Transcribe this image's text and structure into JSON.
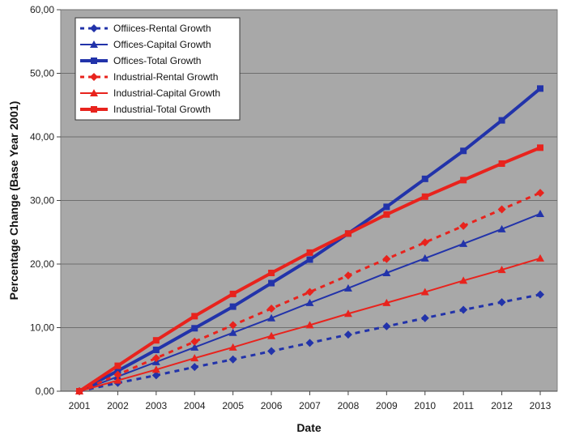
{
  "chart_data": {
    "type": "line",
    "title": "",
    "xlabel": "Date",
    "ylabel": "Percentage Change (Base Year 2001)",
    "x": [
      "2001",
      "2002",
      "2003",
      "2004",
      "2005",
      "2006",
      "2007",
      "2008",
      "2009",
      "2010",
      "2011",
      "2012",
      "2013"
    ],
    "y_ticks": [
      "0,00",
      "10,00",
      "20,00",
      "30,00",
      "40,00",
      "50,00",
      "60,00"
    ],
    "ylim": [
      0,
      60
    ],
    "grid": true,
    "legend_position": "top-left",
    "series": [
      {
        "name": "Offiices-Rental Growth",
        "color": "#2233aa",
        "style": "dotted",
        "marker": "diamond",
        "values": [
          0,
          1.3,
          2.5,
          3.8,
          5.0,
          6.3,
          7.6,
          8.9,
          10.2,
          11.5,
          12.8,
          14.0,
          15.2
        ]
      },
      {
        "name": "Offices-Capital Growth",
        "color": "#2233aa",
        "style": "solid-thin",
        "marker": "triangle",
        "values": [
          0,
          2.3,
          4.6,
          6.9,
          9.2,
          11.5,
          13.9,
          16.2,
          18.6,
          20.9,
          23.2,
          25.5,
          27.9
        ]
      },
      {
        "name": "Offices-Total Growth",
        "color": "#2233aa",
        "style": "solid-thick",
        "marker": "square",
        "values": [
          0,
          3.2,
          6.5,
          9.9,
          13.3,
          17.0,
          20.7,
          24.8,
          29.0,
          33.4,
          37.8,
          42.6,
          47.6
        ]
      },
      {
        "name": "Industrial-Rental Growth",
        "color": "#e8231d",
        "style": "dotted",
        "marker": "diamond",
        "values": [
          0,
          2.6,
          5.2,
          7.8,
          10.4,
          13.0,
          15.6,
          18.2,
          20.8,
          23.4,
          26.0,
          28.6,
          31.2
        ]
      },
      {
        "name": "Industrial-Capital Growth",
        "color": "#e8231d",
        "style": "solid-thin",
        "marker": "triangle",
        "values": [
          0,
          1.7,
          3.4,
          5.2,
          6.9,
          8.7,
          10.4,
          12.2,
          13.9,
          15.6,
          17.4,
          19.1,
          20.9
        ]
      },
      {
        "name": "Industrial-Total Growth",
        "color": "#e8231d",
        "style": "solid-thick",
        "marker": "square",
        "values": [
          0,
          4.0,
          8.0,
          11.8,
          15.3,
          18.6,
          21.8,
          24.8,
          27.8,
          30.6,
          33.2,
          35.8,
          38.3
        ]
      }
    ]
  }
}
